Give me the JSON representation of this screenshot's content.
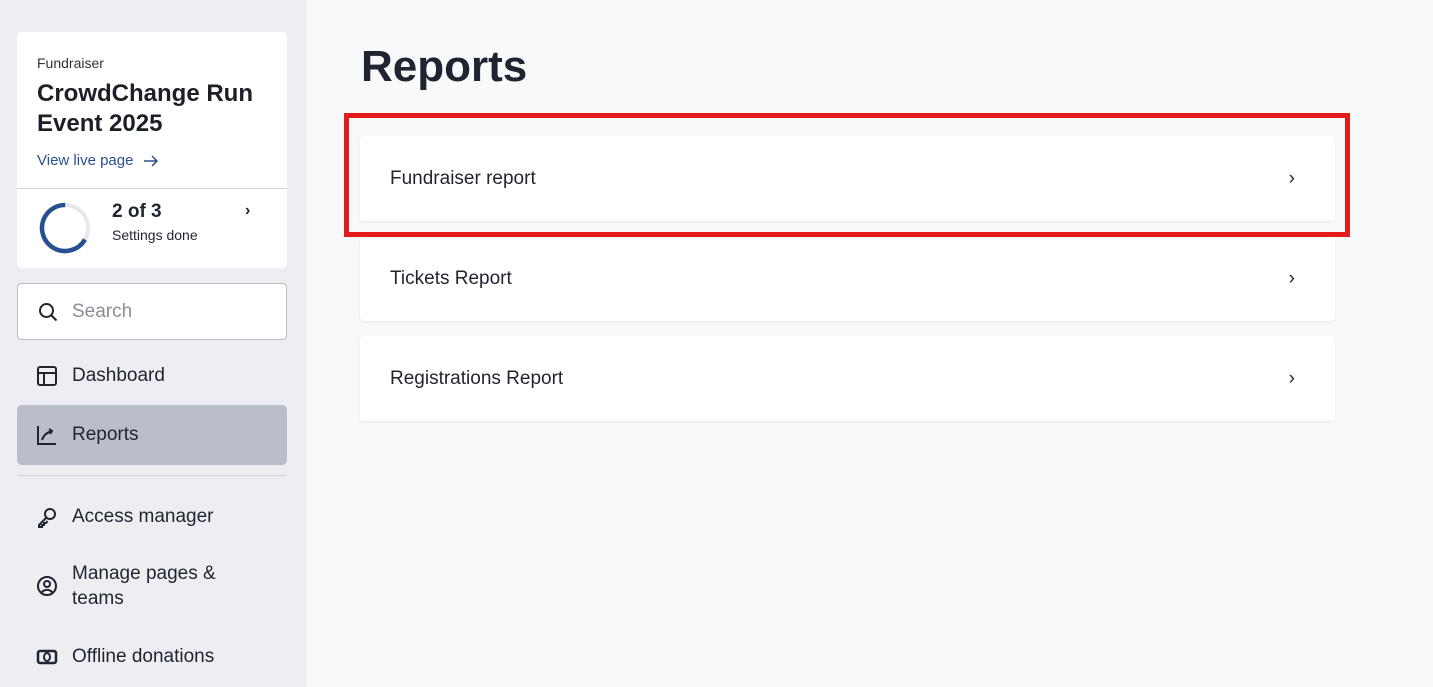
{
  "sidebar": {
    "fundraiser": {
      "kicker": "Fundraiser",
      "title": "CrowdChange Run Event 2025",
      "view_live": "View live page"
    },
    "progress": {
      "count": "2 of 3",
      "label": "Settings done",
      "done": 2,
      "total": 3
    },
    "search": {
      "placeholder": "Search",
      "value": ""
    },
    "items": [
      {
        "label": "Dashboard",
        "icon": "layout-icon"
      },
      {
        "label": "Reports",
        "icon": "chart-up-icon",
        "active": true
      },
      {
        "label": "Access manager",
        "icon": "key-icon"
      },
      {
        "label": "Manage pages & teams",
        "icon": "user-circle-icon"
      },
      {
        "label": "Offline donations",
        "icon": "cash-icon"
      }
    ]
  },
  "main": {
    "title": "Reports",
    "reports": [
      {
        "label": "Fundraiser report"
      },
      {
        "label": "Tickets Report"
      },
      {
        "label": "Registrations Report"
      }
    ]
  },
  "colors": {
    "accent": "#28508f",
    "highlight": "#e41c1c",
    "active_bg": "#b9bec9"
  }
}
